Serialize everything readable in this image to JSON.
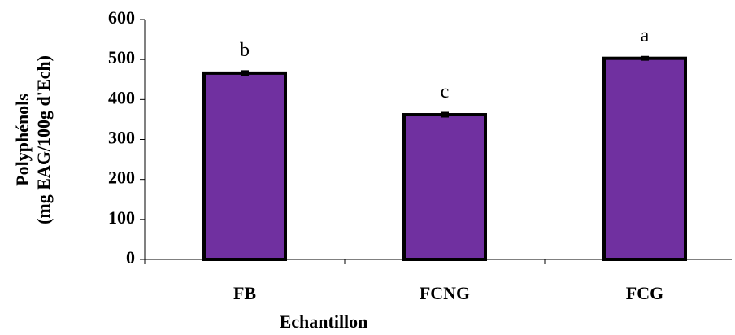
{
  "chart_data": {
    "type": "bar",
    "x_label": "Echantillon",
    "y_label": [
      "Polyphénols",
      "(mg EAG/100g d'Ech)"
    ],
    "categories": [
      "FB",
      "FCNG",
      "FCG"
    ],
    "values": [
      466,
      362,
      503
    ],
    "errors": [
      5,
      5,
      4
    ],
    "letters": [
      "b",
      "c",
      "a"
    ],
    "color": "#7030a0",
    "ylim": [
      0,
      600
    ],
    "yticks": [
      0,
      100,
      200,
      300,
      400,
      500,
      600
    ]
  }
}
